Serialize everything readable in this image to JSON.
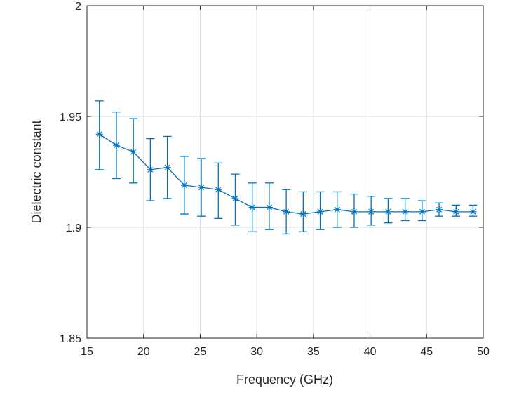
{
  "chart_data": {
    "type": "line",
    "title": "",
    "xlabel": "Frequency (GHz)",
    "ylabel": "Dielectric constant",
    "xlim": [
      15,
      50
    ],
    "ylim": [
      1.85,
      2
    ],
    "xticks": [
      15,
      20,
      25,
      30,
      35,
      40,
      45,
      50
    ],
    "yticks": [
      1.85,
      1.9,
      1.95,
      2
    ],
    "xtick_labels": [
      "15",
      "20",
      "25",
      "30",
      "35",
      "40",
      "45",
      "50"
    ],
    "ytick_labels": [
      "1.85",
      "1.9",
      "1.95",
      "2"
    ],
    "grid": true,
    "legend": "none",
    "marker": "asterisk",
    "series": [
      {
        "color": "#0072BD",
        "x": [
          16.1,
          17.6,
          19.1,
          20.6,
          22.1,
          23.6,
          25.1,
          26.6,
          28.1,
          29.6,
          31.1,
          32.6,
          34.1,
          35.6,
          37.1,
          38.6,
          40.1,
          41.6,
          43.1,
          44.6,
          46.1,
          47.6,
          49.1
        ],
        "y": [
          1.942,
          1.937,
          1.934,
          1.926,
          1.927,
          1.919,
          1.918,
          1.917,
          1.913,
          1.909,
          1.909,
          1.907,
          1.906,
          1.907,
          1.908,
          1.907,
          1.907,
          1.907,
          1.907,
          1.907,
          1.908,
          1.907,
          1.907
        ],
        "error_low": [
          1.926,
          1.922,
          1.92,
          1.912,
          1.913,
          1.906,
          1.905,
          1.904,
          1.901,
          1.898,
          1.899,
          1.897,
          1.898,
          1.899,
          1.9,
          1.9,
          1.901,
          1.902,
          1.903,
          1.903,
          1.905,
          1.905,
          1.905
        ],
        "error_high": [
          1.957,
          1.952,
          1.949,
          1.94,
          1.941,
          1.932,
          1.931,
          1.929,
          1.924,
          1.92,
          1.92,
          1.917,
          1.916,
          1.916,
          1.916,
          1.915,
          1.914,
          1.913,
          1.913,
          1.912,
          1.911,
          1.91,
          1.91
        ]
      }
    ]
  }
}
